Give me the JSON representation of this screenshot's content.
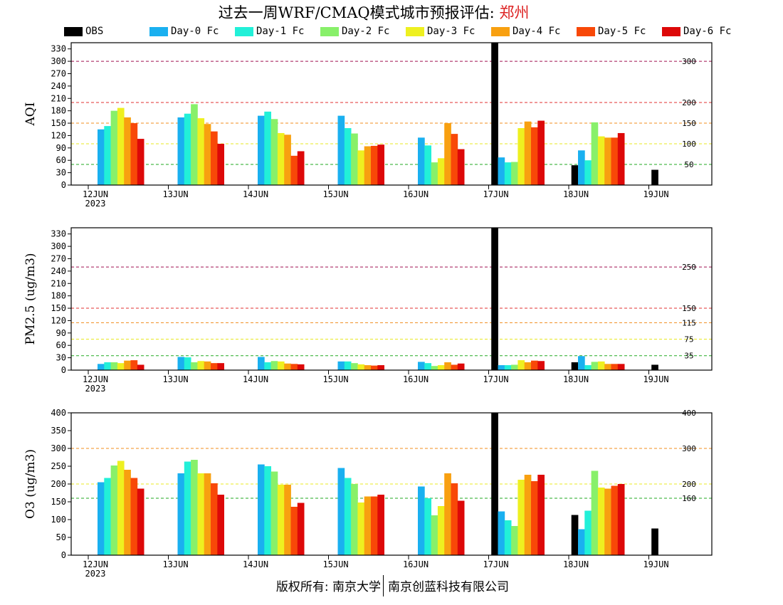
{
  "title": {
    "prefix": "过去一周WRF/CMAQ模式城市预报评估: ",
    "city": "郑州"
  },
  "legend": [
    {
      "label": "OBS",
      "color": "#000000"
    },
    {
      "label": "Day-0 Fc",
      "color": "#1ab0f0"
    },
    {
      "label": "Day-1 Fc",
      "color": "#22f0d8"
    },
    {
      "label": "Day-2 Fc",
      "color": "#88f06a"
    },
    {
      "label": "Day-3 Fc",
      "color": "#eef020"
    },
    {
      "label": "Day-4 Fc",
      "color": "#f8a010"
    },
    {
      "label": "Day-5 Fc",
      "color": "#f84808"
    },
    {
      "label": "Day-6 Fc",
      "color": "#dd0808"
    }
  ],
  "footer": {
    "left": "版权所有: 南京大学",
    "right": "南京创蓝科技有限公司"
  },
  "chart_data": [
    {
      "type": "bar",
      "ylabel": "AQI",
      "categories": [
        "12JUN\n2023",
        "13JUN",
        "14JUN",
        "15JUN",
        "16JUN",
        "17JUN",
        "18JUN",
        "19JUN"
      ],
      "ylim": [
        0,
        345
      ],
      "yticks": [
        0,
        30,
        60,
        90,
        120,
        150,
        180,
        210,
        240,
        270,
        300,
        330
      ],
      "thresholds": [
        {
          "value": 50,
          "label": "50",
          "color": "#22aa22"
        },
        {
          "value": 100,
          "label": "100",
          "color": "#e8e820"
        },
        {
          "value": 150,
          "label": "150",
          "color": "#f08c1c"
        },
        {
          "value": 200,
          "label": "200",
          "color": "#e03030"
        },
        {
          "value": 300,
          "label": "300",
          "color": "#a01050"
        }
      ],
      "series": [
        {
          "name": "OBS",
          "values": [
            null,
            null,
            null,
            null,
            null,
            345,
            48,
            37
          ]
        },
        {
          "name": "Day-0 Fc",
          "values": [
            135,
            164,
            168,
            168,
            115,
            67,
            84,
            null
          ]
        },
        {
          "name": "Day-1 Fc",
          "values": [
            143,
            173,
            178,
            138,
            96,
            55,
            60,
            null
          ]
        },
        {
          "name": "Day-2 Fc",
          "values": [
            180,
            196,
            160,
            125,
            55,
            56,
            152,
            null
          ]
        },
        {
          "name": "Day-3 Fc",
          "values": [
            187,
            162,
            126,
            84,
            65,
            138,
            118,
            null
          ]
        },
        {
          "name": "Day-4 Fc",
          "values": [
            164,
            148,
            122,
            94,
            150,
            154,
            115,
            null
          ]
        },
        {
          "name": "Day-5 Fc",
          "values": [
            150,
            130,
            71,
            95,
            124,
            140,
            115,
            null
          ]
        },
        {
          "name": "Day-6 Fc",
          "values": [
            112,
            100,
            82,
            98,
            87,
            156,
            126,
            null
          ]
        }
      ]
    },
    {
      "type": "bar",
      "ylabel": "PM2.5 (ug/m3)",
      "categories": [
        "12JUN\n2023",
        "13JUN",
        "14JUN",
        "15JUN",
        "16JUN",
        "17JUN",
        "18JUN",
        "19JUN"
      ],
      "ylim": [
        0,
        345
      ],
      "yticks": [
        0,
        30,
        60,
        90,
        120,
        150,
        180,
        210,
        240,
        270,
        300,
        330
      ],
      "thresholds": [
        {
          "value": 35,
          "label": "35",
          "color": "#22aa22"
        },
        {
          "value": 75,
          "label": "75",
          "color": "#e8e820"
        },
        {
          "value": 115,
          "label": "115",
          "color": "#f08c1c"
        },
        {
          "value": 150,
          "label": "150",
          "color": "#e03030"
        },
        {
          "value": 250,
          "label": "250",
          "color": "#a01050"
        }
      ],
      "series": [
        {
          "name": "OBS",
          "values": [
            null,
            null,
            null,
            null,
            null,
            345,
            19,
            13
          ]
        },
        {
          "name": "Day-0 Fc",
          "values": [
            15,
            32,
            32,
            21,
            20,
            12,
            34,
            null
          ]
        },
        {
          "name": "Day-1 Fc",
          "values": [
            19,
            31,
            19,
            21,
            17,
            12,
            12,
            null
          ]
        },
        {
          "name": "Day-2 Fc",
          "values": [
            19,
            19,
            22,
            17,
            10,
            13,
            20,
            null
          ]
        },
        {
          "name": "Day-3 Fc",
          "values": [
            17,
            22,
            21,
            14,
            12,
            24,
            21,
            null
          ]
        },
        {
          "name": "Day-4 Fc",
          "values": [
            23,
            21,
            16,
            12,
            19,
            19,
            15,
            null
          ]
        },
        {
          "name": "Day-5 Fc",
          "values": [
            24,
            17,
            15,
            11,
            13,
            23,
            15,
            null
          ]
        },
        {
          "name": "Day-6 Fc",
          "values": [
            13,
            17,
            14,
            12,
            16,
            22,
            15,
            null
          ]
        }
      ]
    },
    {
      "type": "bar",
      "ylabel": "O3 (ug/m3)",
      "categories": [
        "12JUN\n2023",
        "13JUN",
        "14JUN",
        "15JUN",
        "16JUN",
        "17JUN",
        "18JUN",
        "19JUN"
      ],
      "ylim": [
        0,
        400
      ],
      "yticks": [
        0,
        50,
        100,
        150,
        200,
        250,
        300,
        350,
        400
      ],
      "thresholds": [
        {
          "value": 160,
          "label": "160",
          "color": "#22aa22"
        },
        {
          "value": 200,
          "label": "200",
          "color": "#e8e820"
        },
        {
          "value": 300,
          "label": "300",
          "color": "#f08c1c"
        },
        {
          "value": 400,
          "label": "400",
          "color": "#e03030"
        }
      ],
      "series": [
        {
          "name": "OBS",
          "values": [
            null,
            null,
            null,
            null,
            null,
            400,
            113,
            75
          ]
        },
        {
          "name": "Day-0 Fc",
          "values": [
            205,
            230,
            255,
            245,
            193,
            123,
            73,
            null
          ]
        },
        {
          "name": "Day-1 Fc",
          "values": [
            217,
            263,
            250,
            217,
            160,
            98,
            125,
            null
          ]
        },
        {
          "name": "Day-2 Fc",
          "values": [
            252,
            268,
            235,
            200,
            112,
            82,
            237,
            null
          ]
        },
        {
          "name": "Day-3 Fc",
          "values": [
            265,
            230,
            198,
            148,
            138,
            212,
            190,
            null
          ]
        },
        {
          "name": "Day-4 Fc",
          "values": [
            240,
            230,
            198,
            165,
            230,
            226,
            187,
            null
          ]
        },
        {
          "name": "Day-5 Fc",
          "values": [
            217,
            202,
            136,
            165,
            202,
            208,
            195,
            null
          ]
        },
        {
          "name": "Day-6 Fc",
          "values": [
            187,
            170,
            147,
            170,
            153,
            226,
            200,
            null
          ]
        }
      ]
    }
  ]
}
